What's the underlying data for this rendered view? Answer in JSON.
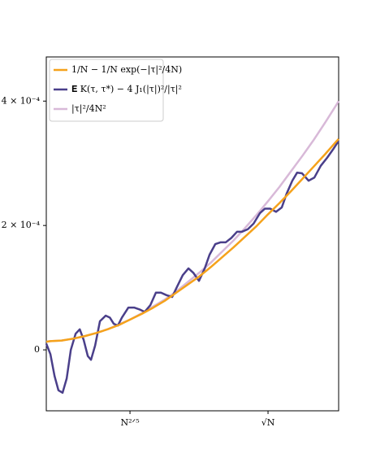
{
  "chart_data": {
    "type": "line",
    "xlim": [
      3.3,
      130.8
    ],
    "xticks": [
      {
        "value": 39.8,
        "label": "N²ᐟ⁵"
      },
      {
        "value": 100,
        "label": "√N"
      }
    ],
    "ylim": [
      -9.8e-05,
      0.000471
    ],
    "yticks": [
      0,
      {
        "value": 0.0002,
        "label": "2 × 10⁻⁴"
      },
      {
        "value": 0.0004,
        "label": "4 × 10⁻⁴"
      }
    ],
    "legend": "upper-left",
    "series": [
      {
        "name": "1/N − 1/N exp(−|τ|²/4N)",
        "color": "#f5a21b",
        "x": [
          3.3,
          5,
          10,
          15,
          20,
          25,
          30,
          35,
          40,
          45,
          50,
          55,
          60,
          65,
          70,
          75,
          80,
          85,
          90,
          95,
          100,
          105,
          110,
          115,
          120,
          125,
          130,
          130.8
        ],
        "values": [
          1.3e-05,
          1.4e-05,
          1.5e-05,
          1.8e-05,
          2.2e-05,
          2.7e-05,
          3.3e-05,
          4e-05,
          4.9e-05,
          5.8e-05,
          6.8e-05,
          7.9e-05,
          9.2e-05,
          0.000105,
          0.000118,
          0.000133,
          0.000149,
          0.000165,
          0.000182,
          0.000199,
          0.000218,
          0.000236,
          0.000255,
          0.000275,
          0.000295,
          0.000315,
          0.000336,
          0.000339
        ]
      },
      {
        "name": "𝐄 K(τ, τ*) − 4 J₁(|τ|)²/|τ|²",
        "color": "#4a3f8a",
        "x": [
          3.3,
          5.1,
          6.9,
          8.6,
          10.4,
          12.2,
          14.0,
          16.1,
          17.9,
          19.6,
          21.4,
          22.8,
          24.6,
          26.7,
          29.2,
          31.0,
          32.7,
          34.5,
          36.3,
          39.1,
          41.6,
          44.0,
          46.2,
          48.7,
          51.1,
          53.3,
          55.7,
          58.2,
          60.4,
          62.8,
          65.3,
          67.4,
          69.9,
          72.4,
          74.5,
          77.0,
          79.4,
          81.6,
          84.0,
          86.5,
          88.7,
          91.2,
          93.7,
          96.5,
          98.6,
          101.0,
          103.5,
          106.0,
          108.1,
          110.6,
          112.7,
          114.8,
          117.7,
          120.2,
          123.0,
          125.8,
          128.3,
          130.8
        ],
        "values": [
          1e-05,
          -7e-06,
          -4.2e-05,
          -6.5e-05,
          -6.9e-05,
          -4.6e-05,
          0,
          2.6e-05,
          3.3e-05,
          1.6e-05,
          -1e-05,
          -1.6e-05,
          7e-06,
          4.6e-05,
          5.5e-05,
          5.2e-05,
          4.2e-05,
          3.9e-05,
          5.2e-05,
          6.8e-05,
          6.8e-05,
          6.5e-05,
          6.1e-05,
          7.2e-05,
          9.2e-05,
          9.2e-05,
          8.8e-05,
          8.5e-05,
          0.000102,
          0.00012,
          0.000131,
          0.000124,
          0.000111,
          0.000131,
          0.000153,
          0.00017,
          0.000173,
          0.000173,
          0.00018,
          0.00019,
          0.00019,
          0.000194,
          0.000203,
          0.00022,
          0.000227,
          0.000227,
          0.000222,
          0.000229,
          0.000251,
          0.000272,
          0.000285,
          0.000284,
          0.000272,
          0.000277,
          0.000296,
          0.000309,
          0.000322,
          0.000336
        ]
      },
      {
        "name": "|τ|²/4N²",
        "color": "#d8b9d8",
        "x": [
          3.3,
          5,
          10,
          15,
          20,
          25,
          30,
          35,
          40,
          45,
          50,
          55,
          60,
          65,
          70,
          75,
          80,
          85,
          90,
          95,
          100,
          105,
          110,
          115,
          120,
          125,
          130,
          130.8
        ],
        "values": [
          1.3e-05,
          1.4e-05,
          1.5e-05,
          1.8e-05,
          2.2e-05,
          2.7e-05,
          3.3e-05,
          4.1e-05,
          4.9e-05,
          5.9e-05,
          7e-05,
          8.1e-05,
          9.4e-05,
          0.000109,
          0.000124,
          0.00014,
          0.000158,
          0.000176,
          0.000196,
          0.000217,
          0.000239,
          0.000262,
          0.000287,
          0.000312,
          0.000338,
          0.000366,
          0.000395,
          0.0004
        ]
      }
    ]
  }
}
